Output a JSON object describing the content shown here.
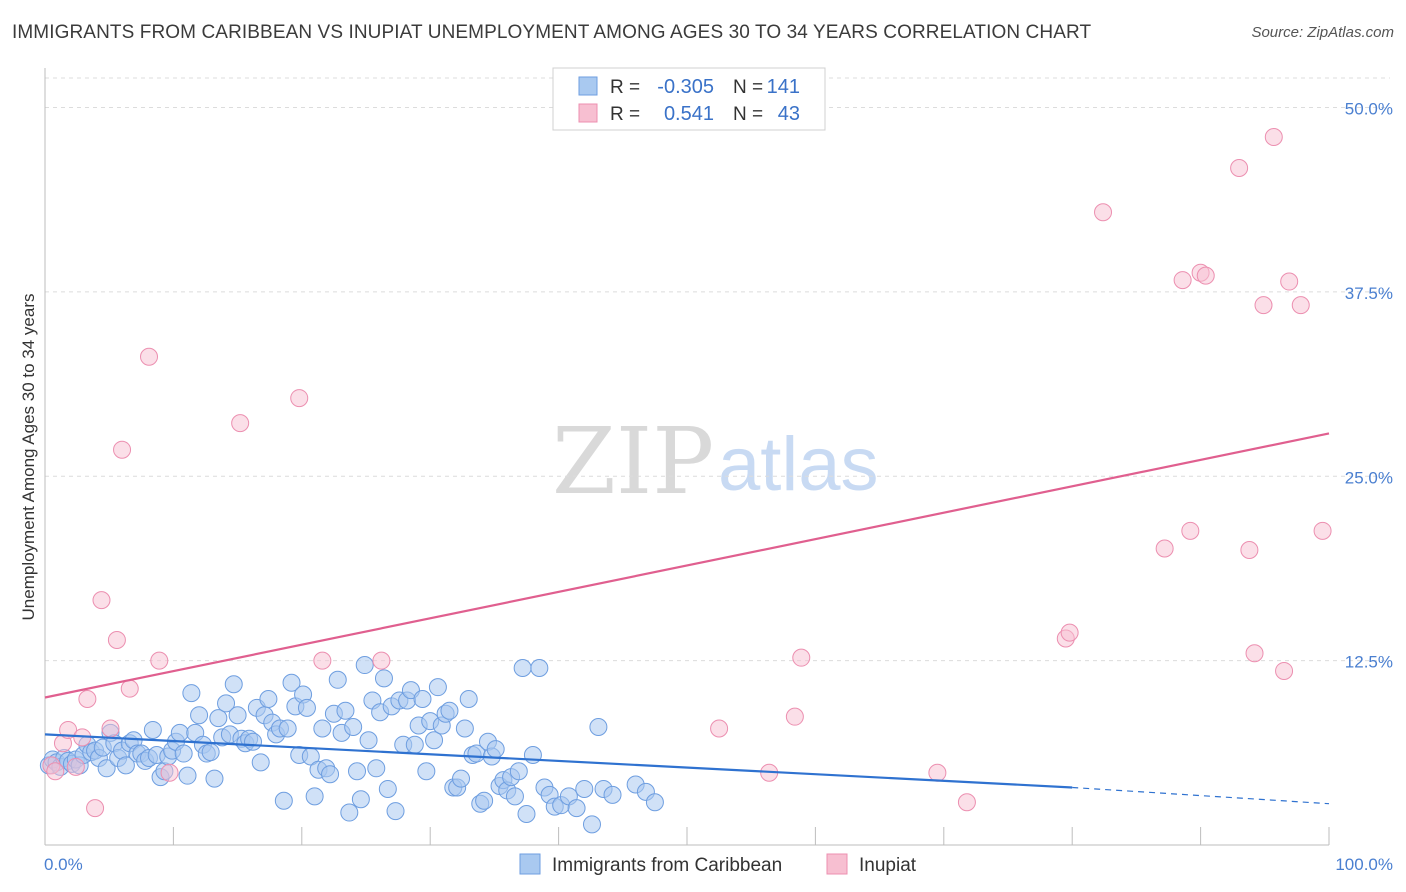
{
  "title": "IMMIGRANTS FROM CARIBBEAN VS INUPIAT UNEMPLOYMENT AMONG AGES 30 TO 34 YEARS CORRELATION CHART",
  "source": "Source: ZipAtlas.com",
  "watermark": {
    "zip": "ZIP",
    "atlas": "atlas"
  },
  "colors": {
    "blue_fill": "#a9c9f0",
    "blue_stroke": "#6e9ee0",
    "blue_line": "#2f72d0",
    "pink_fill": "#f7bfd1",
    "pink_stroke": "#ec8fb0",
    "pink_line": "#e05f8f",
    "tick_text": "#4a7fd0"
  },
  "legend": {
    "rows": [
      {
        "r_label": "R =",
        "r_value": "-0.305",
        "n_label": "N =",
        "n_value": "141"
      },
      {
        "r_label": "R =",
        "r_value": "0.541",
        "n_label": "N =",
        "n_value": "43"
      }
    ]
  },
  "chart_data": {
    "type": "scatter",
    "title": "IMMIGRANTS FROM CARIBBEAN VS INUPIAT UNEMPLOYMENT AMONG AGES 30 TO 34 YEARS CORRELATION CHART",
    "xlabel": "",
    "ylabel": "Unemployment Among Ages 30 to 34 years",
    "xlim": [
      0,
      100
    ],
    "ylim": [
      0,
      52
    ],
    "x_tick_labels": [
      "0.0%",
      "100.0%"
    ],
    "y_ticks": [
      12.5,
      25.0,
      37.5,
      50.0
    ],
    "y_tick_labels": [
      "12.5%",
      "25.0%",
      "37.5%",
      "50.0%"
    ],
    "grid": true,
    "series": [
      {
        "name": "Immigrants from Caribbean",
        "color": "#a9c9f0",
        "trend": {
          "x0": 0,
          "y0": 7.5,
          "x1": 80,
          "y1": 3.9,
          "dash_to_x": 100,
          "dash_to_y": 2.8
        },
        "points": [
          [
            0.3,
            5.4
          ],
          [
            0.6,
            5.8
          ],
          [
            0.9,
            5.6
          ],
          [
            1.2,
            5.3
          ],
          [
            1.5,
            5.9
          ],
          [
            1.8,
            5.7
          ],
          [
            2.1,
            5.5
          ],
          [
            2.4,
            5.8
          ],
          [
            2.7,
            5.4
          ],
          [
            3.0,
            6.1
          ],
          [
            3.3,
            6.8
          ],
          [
            3.6,
            6.3
          ],
          [
            3.9,
            6.4
          ],
          [
            4.2,
            5.9
          ],
          [
            4.5,
            6.6
          ],
          [
            4.8,
            5.2
          ],
          [
            5.1,
            7.6
          ],
          [
            5.4,
            6.9
          ],
          [
            5.7,
            5.9
          ],
          [
            6.0,
            6.4
          ],
          [
            6.3,
            5.4
          ],
          [
            6.6,
            6.9
          ],
          [
            6.9,
            7.1
          ],
          [
            7.2,
            6.2
          ],
          [
            7.5,
            6.2
          ],
          [
            7.8,
            5.7
          ],
          [
            8.1,
            5.9
          ],
          [
            8.4,
            7.8
          ],
          [
            8.7,
            6.1
          ],
          [
            9.0,
            4.6
          ],
          [
            9.3,
            5.0
          ],
          [
            9.6,
            6.0
          ],
          [
            9.9,
            6.4
          ],
          [
            10.2,
            7.0
          ],
          [
            10.5,
            7.6
          ],
          [
            10.8,
            6.2
          ],
          [
            11.1,
            4.7
          ],
          [
            11.4,
            10.3
          ],
          [
            11.7,
            7.6
          ],
          [
            12.0,
            8.8
          ],
          [
            12.3,
            6.8
          ],
          [
            12.6,
            6.2
          ],
          [
            12.9,
            6.3
          ],
          [
            13.2,
            4.5
          ],
          [
            13.5,
            8.6
          ],
          [
            13.8,
            7.3
          ],
          [
            14.1,
            9.6
          ],
          [
            14.4,
            7.5
          ],
          [
            14.7,
            10.9
          ],
          [
            15.0,
            8.8
          ],
          [
            15.3,
            7.2
          ],
          [
            15.6,
            6.9
          ],
          [
            15.9,
            7.2
          ],
          [
            16.2,
            7.0
          ],
          [
            16.5,
            9.3
          ],
          [
            16.8,
            5.6
          ],
          [
            17.1,
            8.8
          ],
          [
            17.4,
            9.9
          ],
          [
            17.7,
            8.3
          ],
          [
            18.0,
            7.5
          ],
          [
            18.3,
            7.9
          ],
          [
            18.6,
            3.0
          ],
          [
            18.9,
            7.9
          ],
          [
            19.2,
            11.0
          ],
          [
            19.5,
            9.4
          ],
          [
            19.8,
            6.1
          ],
          [
            20.1,
            10.2
          ],
          [
            20.4,
            9.3
          ],
          [
            20.7,
            6.0
          ],
          [
            21.0,
            3.3
          ],
          [
            21.3,
            5.1
          ],
          [
            21.6,
            7.9
          ],
          [
            21.9,
            5.2
          ],
          [
            22.2,
            4.8
          ],
          [
            22.5,
            8.9
          ],
          [
            22.8,
            11.2
          ],
          [
            23.1,
            7.6
          ],
          [
            23.4,
            9.1
          ],
          [
            23.7,
            2.2
          ],
          [
            24.0,
            8.0
          ],
          [
            24.3,
            5.0
          ],
          [
            24.6,
            3.1
          ],
          [
            24.9,
            12.2
          ],
          [
            25.2,
            7.1
          ],
          [
            25.5,
            9.8
          ],
          [
            25.8,
            5.2
          ],
          [
            26.1,
            9.0
          ],
          [
            26.4,
            11.3
          ],
          [
            26.7,
            3.8
          ],
          [
            27.0,
            9.4
          ],
          [
            27.3,
            2.3
          ],
          [
            27.6,
            9.8
          ],
          [
            27.9,
            6.8
          ],
          [
            28.2,
            9.8
          ],
          [
            28.5,
            10.5
          ],
          [
            28.8,
            6.8
          ],
          [
            29.1,
            8.1
          ],
          [
            29.4,
            9.9
          ],
          [
            29.7,
            5.0
          ],
          [
            30.0,
            8.4
          ],
          [
            30.3,
            7.1
          ],
          [
            30.6,
            10.7
          ],
          [
            30.9,
            8.1
          ],
          [
            31.2,
            8.9
          ],
          [
            31.5,
            9.1
          ],
          [
            31.8,
            3.9
          ],
          [
            32.1,
            3.9
          ],
          [
            32.4,
            4.5
          ],
          [
            32.7,
            7.9
          ],
          [
            33.0,
            9.9
          ],
          [
            33.3,
            6.1
          ],
          [
            33.6,
            6.2
          ],
          [
            33.9,
            2.8
          ],
          [
            34.2,
            3.0
          ],
          [
            34.5,
            7.0
          ],
          [
            34.8,
            6.0
          ],
          [
            35.1,
            6.5
          ],
          [
            35.4,
            4.0
          ],
          [
            35.7,
            4.4
          ],
          [
            36.0,
            3.7
          ],
          [
            36.3,
            4.6
          ],
          [
            36.6,
            3.3
          ],
          [
            36.9,
            5.0
          ],
          [
            37.2,
            12.0
          ],
          [
            37.5,
            2.1
          ],
          [
            38.0,
            6.1
          ],
          [
            38.5,
            12.0
          ],
          [
            38.9,
            3.9
          ],
          [
            39.3,
            3.4
          ],
          [
            39.7,
            2.6
          ],
          [
            40.2,
            2.7
          ],
          [
            40.8,
            3.3
          ],
          [
            41.4,
            2.5
          ],
          [
            42.0,
            3.8
          ],
          [
            42.6,
            1.4
          ],
          [
            43.1,
            8.0
          ],
          [
            43.5,
            3.8
          ],
          [
            44.2,
            3.4
          ],
          [
            46.0,
            4.1
          ],
          [
            46.8,
            3.6
          ],
          [
            47.5,
            2.9
          ]
        ]
      },
      {
        "name": "Inupiat",
        "color": "#f7bfd1",
        "trend": {
          "x0": 0,
          "y0": 10.0,
          "x1": 100,
          "y1": 27.9
        },
        "points": [
          [
            0.5,
            5.4
          ],
          [
            0.8,
            5.0
          ],
          [
            1.4,
            6.9
          ],
          [
            1.8,
            7.8
          ],
          [
            2.4,
            5.3
          ],
          [
            2.9,
            7.3
          ],
          [
            3.3,
            9.9
          ],
          [
            3.9,
            2.5
          ],
          [
            4.4,
            16.6
          ],
          [
            5.1,
            7.9
          ],
          [
            5.6,
            13.9
          ],
          [
            6.0,
            26.8
          ],
          [
            6.6,
            10.6
          ],
          [
            8.1,
            33.1
          ],
          [
            8.9,
            12.5
          ],
          [
            9.7,
            4.9
          ],
          [
            15.2,
            28.6
          ],
          [
            19.8,
            30.3
          ],
          [
            21.6,
            12.5
          ],
          [
            26.2,
            12.5
          ],
          [
            52.5,
            7.9
          ],
          [
            56.4,
            4.9
          ],
          [
            58.4,
            8.7
          ],
          [
            58.9,
            12.7
          ],
          [
            69.5,
            4.9
          ],
          [
            71.8,
            2.9
          ],
          [
            79.5,
            14.0
          ],
          [
            79.8,
            14.4
          ],
          [
            82.4,
            42.9
          ],
          [
            87.2,
            20.1
          ],
          [
            88.6,
            38.3
          ],
          [
            89.2,
            21.3
          ],
          [
            90.0,
            38.8
          ],
          [
            90.4,
            38.6
          ],
          [
            93.0,
            45.9
          ],
          [
            93.8,
            20.0
          ],
          [
            94.2,
            13.0
          ],
          [
            94.9,
            36.6
          ],
          [
            95.7,
            48.0
          ],
          [
            96.5,
            11.8
          ],
          [
            96.9,
            38.2
          ],
          [
            97.8,
            36.6
          ],
          [
            99.5,
            21.3
          ]
        ]
      }
    ]
  },
  "bottom_legend": [
    "Immigrants from Caribbean",
    "Inupiat"
  ]
}
